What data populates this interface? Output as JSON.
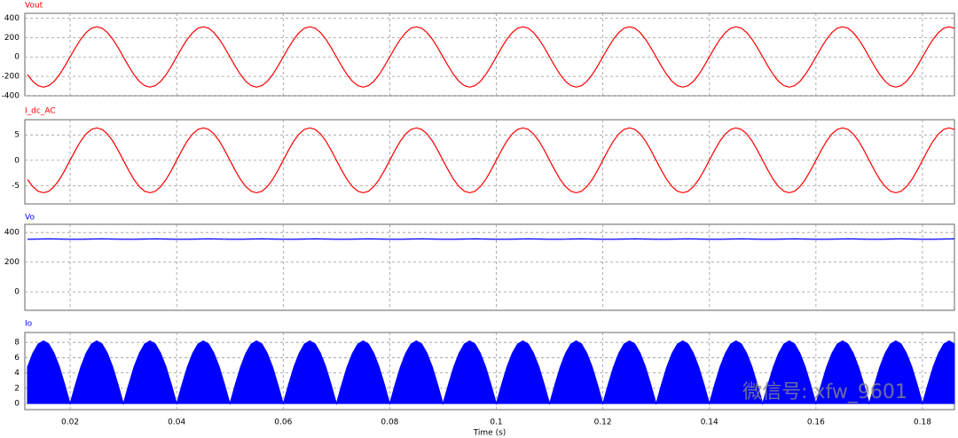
{
  "watermark": "微信号: xfw_9601",
  "chart_data": [
    {
      "type": "line",
      "title": "Vout",
      "color": "#ff0000",
      "xlim": [
        0.0115,
        0.186
      ],
      "ylim": [
        -400,
        450
      ],
      "yticks": [
        -400,
        -200,
        0,
        200,
        400
      ],
      "xticks": [
        0.02,
        0.04,
        0.06,
        0.08,
        0.1,
        0.12,
        0.14,
        0.16,
        0.18
      ],
      "grid": true,
      "x": [
        0.012,
        0.013,
        0.014,
        0.015,
        0.016,
        0.017,
        0.018,
        0.019,
        0.02,
        0.021,
        0.022,
        0.023,
        0.024,
        0.025,
        0.026,
        0.027,
        0.028,
        0.029,
        0.03,
        0.031,
        0.032,
        0.033,
        0.034,
        0.035,
        0.036,
        0.037,
        0.038,
        0.039,
        0.04,
        0.041,
        0.042,
        0.043,
        0.044,
        0.045,
        0.046,
        0.047,
        0.048,
        0.049,
        0.05,
        0.051,
        0.052,
        0.053,
        0.054,
        0.055,
        0.056,
        0.057,
        0.058,
        0.059,
        0.06,
        0.061,
        0.062,
        0.063,
        0.064,
        0.065,
        0.066,
        0.067,
        0.068,
        0.069,
        0.07,
        0.071,
        0.072,
        0.073,
        0.074,
        0.075,
        0.076,
        0.077,
        0.078,
        0.079,
        0.08,
        0.081,
        0.082,
        0.083,
        0.084,
        0.085,
        0.086,
        0.087,
        0.088,
        0.089,
        0.09,
        0.091,
        0.092,
        0.093,
        0.094,
        0.095,
        0.096,
        0.097,
        0.098,
        0.099,
        0.1,
        0.101,
        0.102,
        0.103,
        0.104,
        0.105,
        0.106,
        0.107,
        0.108,
        0.109,
        0.11,
        0.111,
        0.112,
        0.113,
        0.114,
        0.115,
        0.116,
        0.117,
        0.118,
        0.119,
        0.12,
        0.121,
        0.122,
        0.123,
        0.124,
        0.125,
        0.126,
        0.127,
        0.128,
        0.129,
        0.13,
        0.131,
        0.132,
        0.133,
        0.134,
        0.135,
        0.136,
        0.137,
        0.138,
        0.139,
        0.14,
        0.141,
        0.142,
        0.143,
        0.144,
        0.145,
        0.146,
        0.147,
        0.148,
        0.149,
        0.15,
        0.151,
        0.152,
        0.153,
        0.154,
        0.155,
        0.156,
        0.157,
        0.158,
        0.159,
        0.16,
        0.161,
        0.162,
        0.163,
        0.164,
        0.165,
        0.166,
        0.167,
        0.168,
        0.169,
        0.17,
        0.171,
        0.172,
        0.173,
        0.174,
        0.175,
        0.176,
        0.177,
        0.178,
        0.179,
        0.18,
        0.181,
        0.182,
        0.183,
        0.184,
        0.185,
        0.186
      ],
      "values": [
        -183,
        -252,
        -296,
        -311,
        -296,
        -252,
        -183,
        -96,
        0,
        96,
        183,
        252,
        296,
        311,
        296,
        252,
        183,
        96,
        0,
        -96,
        -183,
        -252,
        -296,
        -311,
        -296,
        -252,
        -183,
        -96,
        0,
        96,
        183,
        252,
        296,
        311,
        296,
        252,
        183,
        96,
        0,
        -96,
        -183,
        -252,
        -296,
        -311,
        -296,
        -252,
        -183,
        -96,
        0,
        96,
        183,
        252,
        296,
        311,
        296,
        252,
        183,
        96,
        0,
        -96,
        -183,
        -252,
        -296,
        -311,
        -296,
        -252,
        -183,
        -96,
        0,
        96,
        183,
        252,
        296,
        311,
        296,
        252,
        183,
        96,
        0,
        -96,
        -183,
        -252,
        -296,
        -311,
        -296,
        -252,
        -183,
        -96,
        0,
        96,
        183,
        252,
        296,
        311,
        296,
        252,
        183,
        96,
        0,
        -96,
        -183,
        -252,
        -296,
        -311,
        -296,
        -252,
        -183,
        -96,
        0,
        96,
        183,
        252,
        296,
        311,
        296,
        252,
        183,
        96,
        0,
        -96,
        -183,
        -252,
        -296,
        -311,
        -296,
        -252,
        -183,
        -96,
        0,
        96,
        183,
        252,
        296,
        311,
        296,
        252,
        183,
        96,
        0,
        -96,
        -183,
        -252,
        -296,
        -311,
        -296,
        -252,
        -183,
        -96,
        0,
        96,
        183,
        252,
        296,
        311,
        296,
        252,
        183,
        96,
        0,
        -96,
        -183,
        -252,
        -296,
        -311,
        -296,
        -252,
        -183,
        -96,
        0,
        96,
        183,
        252,
        296,
        311,
        296
      ]
    },
    {
      "type": "line",
      "title": "I_dc_AC",
      "color": "#ff0000",
      "xlim": [
        0.0115,
        0.186
      ],
      "ylim": [
        -8.6,
        8
      ],
      "yticks": [
        -5,
        0,
        5
      ],
      "xticks": [
        0.02,
        0.04,
        0.06,
        0.08,
        0.1,
        0.12,
        0.14,
        0.16,
        0.18
      ],
      "grid": true,
      "x": [
        0.012,
        0.013,
        0.014,
        0.015,
        0.016,
        0.017,
        0.018,
        0.019,
        0.02,
        0.021,
        0.022,
        0.023,
        0.024,
        0.025,
        0.026,
        0.027,
        0.028,
        0.029,
        0.03,
        0.031,
        0.032,
        0.033,
        0.034,
        0.035,
        0.036,
        0.037,
        0.038,
        0.039,
        0.04,
        0.041,
        0.042,
        0.043,
        0.044,
        0.045,
        0.046,
        0.047,
        0.048,
        0.049,
        0.05,
        0.051,
        0.052,
        0.053,
        0.054,
        0.055,
        0.056,
        0.057,
        0.058,
        0.059,
        0.06,
        0.061,
        0.062,
        0.063,
        0.064,
        0.065,
        0.066,
        0.067,
        0.068,
        0.069,
        0.07,
        0.071,
        0.072,
        0.073,
        0.074,
        0.075,
        0.076,
        0.077,
        0.078,
        0.079,
        0.08,
        0.081,
        0.082,
        0.083,
        0.084,
        0.085,
        0.086,
        0.087,
        0.088,
        0.089,
        0.09,
        0.091,
        0.092,
        0.093,
        0.094,
        0.095,
        0.096,
        0.097,
        0.098,
        0.099,
        0.1,
        0.101,
        0.102,
        0.103,
        0.104,
        0.105,
        0.106,
        0.107,
        0.108,
        0.109,
        0.11,
        0.111,
        0.112,
        0.113,
        0.114,
        0.115,
        0.116,
        0.117,
        0.118,
        0.119,
        0.12,
        0.121,
        0.122,
        0.123,
        0.124,
        0.125,
        0.126,
        0.127,
        0.128,
        0.129,
        0.13,
        0.131,
        0.132,
        0.133,
        0.134,
        0.135,
        0.136,
        0.137,
        0.138,
        0.139,
        0.14,
        0.141,
        0.142,
        0.143,
        0.144,
        0.145,
        0.146,
        0.147,
        0.148,
        0.149,
        0.15,
        0.151,
        0.152,
        0.153,
        0.154,
        0.155,
        0.156,
        0.157,
        0.158,
        0.159,
        0.16,
        0.161,
        0.162,
        0.163,
        0.164,
        0.165,
        0.166,
        0.167,
        0.168,
        0.169,
        0.17,
        0.171,
        0.172,
        0.173,
        0.174,
        0.175,
        0.176,
        0.177,
        0.178,
        0.179,
        0.18,
        0.181,
        0.182,
        0.183,
        0.184,
        0.185,
        0.186
      ],
      "values": [
        -3.8,
        -5.2,
        -6.1,
        -6.4,
        -6.1,
        -5.2,
        -3.8,
        -2,
        0,
        2,
        3.8,
        5.2,
        6.1,
        6.4,
        6.1,
        5.2,
        3.8,
        2,
        0,
        -2,
        -3.8,
        -5.2,
        -6.1,
        -6.4,
        -6.1,
        -5.2,
        -3.8,
        -2,
        0,
        2,
        3.8,
        5.2,
        6.1,
        6.4,
        6.1,
        5.2,
        3.8,
        2,
        0,
        -2,
        -3.8,
        -5.2,
        -6.1,
        -6.4,
        -6.1,
        -5.2,
        -3.8,
        -2,
        0,
        2,
        3.8,
        5.2,
        6.1,
        6.4,
        6.1,
        5.2,
        3.8,
        2,
        0,
        -2,
        -3.8,
        -5.2,
        -6.1,
        -6.4,
        -6.1,
        -5.2,
        -3.8,
        -2,
        0,
        2,
        3.8,
        5.2,
        6.1,
        6.4,
        6.1,
        5.2,
        3.8,
        2,
        0,
        -2,
        -3.8,
        -5.2,
        -6.1,
        -6.4,
        -6.1,
        -5.2,
        -3.8,
        -2,
        0,
        2,
        3.8,
        5.2,
        6.1,
        6.4,
        6.1,
        5.2,
        3.8,
        2,
        0,
        -2,
        -3.8,
        -5.2,
        -6.1,
        -6.4,
        -6.1,
        -5.2,
        -3.8,
        -2,
        0,
        2,
        3.8,
        5.2,
        6.1,
        6.4,
        6.1,
        5.2,
        3.8,
        2,
        0,
        -2,
        -3.8,
        -5.2,
        -6.1,
        -6.4,
        -6.1,
        -5.2,
        -3.8,
        -2,
        0,
        2,
        3.8,
        5.2,
        6.1,
        6.4,
        6.1,
        5.2,
        3.8,
        2,
        0,
        -2,
        -3.8,
        -5.2,
        -6.1,
        -6.4,
        -6.1,
        -5.2,
        -3.8,
        -2,
        0,
        2,
        3.8,
        5.2,
        6.1,
        6.4,
        6.1,
        5.2,
        3.8,
        2,
        0,
        -2,
        -3.8,
        -5.2,
        -6.1,
        -6.4,
        -6.1,
        -5.2,
        -3.8,
        -2,
        0,
        2,
        3.8,
        5.2,
        6.1,
        6.4,
        6.1
      ]
    },
    {
      "type": "line",
      "title": "Vo",
      "color": "#0000ff",
      "xlim": [
        0.0115,
        0.186
      ],
      "ylim": [
        -125,
        455
      ],
      "yticks": [
        0,
        200,
        400
      ],
      "xticks": [
        0.02,
        0.04,
        0.06,
        0.08,
        0.1,
        0.12,
        0.14,
        0.16,
        0.18
      ],
      "grid": true,
      "x": [
        0.012,
        0.014,
        0.016,
        0.018,
        0.02,
        0.022,
        0.024,
        0.026,
        0.028,
        0.03,
        0.032,
        0.034,
        0.036,
        0.038,
        0.04,
        0.042,
        0.044,
        0.046,
        0.048,
        0.05,
        0.052,
        0.054,
        0.056,
        0.058,
        0.06,
        0.062,
        0.064,
        0.066,
        0.068,
        0.07,
        0.072,
        0.074,
        0.076,
        0.078,
        0.08,
        0.082,
        0.084,
        0.086,
        0.088,
        0.09,
        0.092,
        0.094,
        0.096,
        0.098,
        0.1,
        0.102,
        0.104,
        0.106,
        0.108,
        0.11,
        0.112,
        0.114,
        0.116,
        0.118,
        0.12,
        0.122,
        0.124,
        0.126,
        0.128,
        0.13,
        0.132,
        0.134,
        0.136,
        0.138,
        0.14,
        0.142,
        0.144,
        0.146,
        0.148,
        0.15,
        0.152,
        0.154,
        0.156,
        0.158,
        0.16,
        0.162,
        0.164,
        0.166,
        0.168,
        0.17,
        0.172,
        0.174,
        0.176,
        0.178,
        0.18,
        0.182,
        0.184,
        0.186
      ],
      "values": [
        354,
        356,
        357,
        356,
        354,
        354,
        356,
        357,
        356,
        354,
        354,
        356,
        357,
        356,
        354,
        354,
        356,
        357,
        356,
        354,
        354,
        356,
        357,
        356,
        354,
        354,
        356,
        357,
        356,
        354,
        354,
        356,
        357,
        356,
        354,
        354,
        356,
        357,
        356,
        354,
        354,
        356,
        357,
        356,
        354,
        354,
        356,
        357,
        356,
        354,
        354,
        356,
        357,
        356,
        354,
        354,
        356,
        357,
        356,
        354,
        354,
        356,
        357,
        356,
        354,
        354,
        356,
        357,
        356,
        354,
        354,
        356,
        357,
        356,
        354,
        354,
        356,
        357,
        356,
        354,
        354,
        356,
        357,
        356,
        354,
        354,
        356,
        357
      ]
    },
    {
      "type": "area",
      "title": "Io",
      "color": "#0000ff",
      "xlim": [
        0.0115,
        0.186
      ],
      "ylim": [
        -0.8,
        9.3
      ],
      "yticks": [
        0,
        2,
        4,
        6,
        8
      ],
      "xticks": [
        0.02,
        0.04,
        0.06,
        0.08,
        0.1,
        0.12,
        0.14,
        0.16,
        0.18
      ],
      "grid": true,
      "xlabel": "Time (s)",
      "x": [
        0.012,
        0.013,
        0.014,
        0.015,
        0.016,
        0.017,
        0.018,
        0.019,
        0.02,
        0.021,
        0.022,
        0.023,
        0.024,
        0.025,
        0.026,
        0.027,
        0.028,
        0.029,
        0.03,
        0.031,
        0.032,
        0.033,
        0.034,
        0.035,
        0.036,
        0.037,
        0.038,
        0.039,
        0.04,
        0.041,
        0.042,
        0.043,
        0.044,
        0.045,
        0.046,
        0.047,
        0.048,
        0.049,
        0.05,
        0.051,
        0.052,
        0.053,
        0.054,
        0.055,
        0.056,
        0.057,
        0.058,
        0.059,
        0.06,
        0.061,
        0.062,
        0.063,
        0.064,
        0.065,
        0.066,
        0.067,
        0.068,
        0.069,
        0.07,
        0.071,
        0.072,
        0.073,
        0.074,
        0.075,
        0.076,
        0.077,
        0.078,
        0.079,
        0.08,
        0.081,
        0.082,
        0.083,
        0.084,
        0.085,
        0.086,
        0.087,
        0.088,
        0.089,
        0.09,
        0.091,
        0.092,
        0.093,
        0.094,
        0.095,
        0.096,
        0.097,
        0.098,
        0.099,
        0.1,
        0.101,
        0.102,
        0.103,
        0.104,
        0.105,
        0.106,
        0.107,
        0.108,
        0.109,
        0.11,
        0.111,
        0.112,
        0.113,
        0.114,
        0.115,
        0.116,
        0.117,
        0.118,
        0.119,
        0.12,
        0.121,
        0.122,
        0.123,
        0.124,
        0.125,
        0.126,
        0.127,
        0.128,
        0.129,
        0.13,
        0.131,
        0.132,
        0.133,
        0.134,
        0.135,
        0.136,
        0.137,
        0.138,
        0.139,
        0.14,
        0.141,
        0.142,
        0.143,
        0.144,
        0.145,
        0.146,
        0.147,
        0.148,
        0.149,
        0.15,
        0.151,
        0.152,
        0.153,
        0.154,
        0.155,
        0.156,
        0.157,
        0.158,
        0.159,
        0.16,
        0.161,
        0.162,
        0.163,
        0.164,
        0.165,
        0.166,
        0.167,
        0.168,
        0.169,
        0.17,
        0.171,
        0.172,
        0.173,
        0.174,
        0.175,
        0.176,
        0.177,
        0.178,
        0.179,
        0.18,
        0.181,
        0.182,
        0.183,
        0.184,
        0.185,
        0.186
      ],
      "values": [
        4.8,
        6.6,
        7.8,
        8.2,
        7.8,
        6.6,
        4.8,
        2.5,
        0,
        2.5,
        4.8,
        6.6,
        7.8,
        8.2,
        7.8,
        6.6,
        4.8,
        2.5,
        0,
        2.5,
        4.8,
        6.6,
        7.8,
        8.2,
        7.8,
        6.6,
        4.8,
        2.5,
        0,
        2.5,
        4.8,
        6.6,
        7.8,
        8.2,
        7.8,
        6.6,
        4.8,
        2.5,
        0,
        2.5,
        4.8,
        6.6,
        7.8,
        8.2,
        7.8,
        6.6,
        4.8,
        2.5,
        0,
        2.5,
        4.8,
        6.6,
        7.8,
        8.2,
        7.8,
        6.6,
        4.8,
        2.5,
        0,
        2.5,
        4.8,
        6.6,
        7.8,
        8.2,
        7.8,
        6.6,
        4.8,
        2.5,
        0,
        2.5,
        4.8,
        6.6,
        7.8,
        8.2,
        7.8,
        6.6,
        4.8,
        2.5,
        0,
        2.5,
        4.8,
        6.6,
        7.8,
        8.2,
        7.8,
        6.6,
        4.8,
        2.5,
        0,
        2.5,
        4.8,
        6.6,
        7.8,
        8.2,
        7.8,
        6.6,
        4.8,
        2.5,
        0,
        2.5,
        4.8,
        6.6,
        7.8,
        8.2,
        7.8,
        6.6,
        4.8,
        2.5,
        0,
        2.5,
        4.8,
        6.6,
        7.8,
        8.2,
        7.8,
        6.6,
        4.8,
        2.5,
        0,
        2.5,
        4.8,
        6.6,
        7.8,
        8.2,
        7.8,
        6.6,
        4.8,
        2.5,
        0,
        2.5,
        4.8,
        6.6,
        7.8,
        8.2,
        7.8,
        6.6,
        4.8,
        2.5,
        0,
        2.5,
        4.8,
        6.6,
        7.8,
        8.2,
        7.8,
        6.6,
        4.8,
        2.5,
        0,
        2.5,
        4.8,
        6.6,
        7.8,
        8.2,
        7.8,
        6.6,
        4.8,
        2.5,
        0,
        2.5,
        4.8,
        6.6,
        7.8,
        8.2,
        7.8,
        6.6,
        4.8,
        2.5,
        0,
        2.5,
        4.8,
        6.6,
        7.8,
        8.2,
        7.8
      ]
    }
  ]
}
